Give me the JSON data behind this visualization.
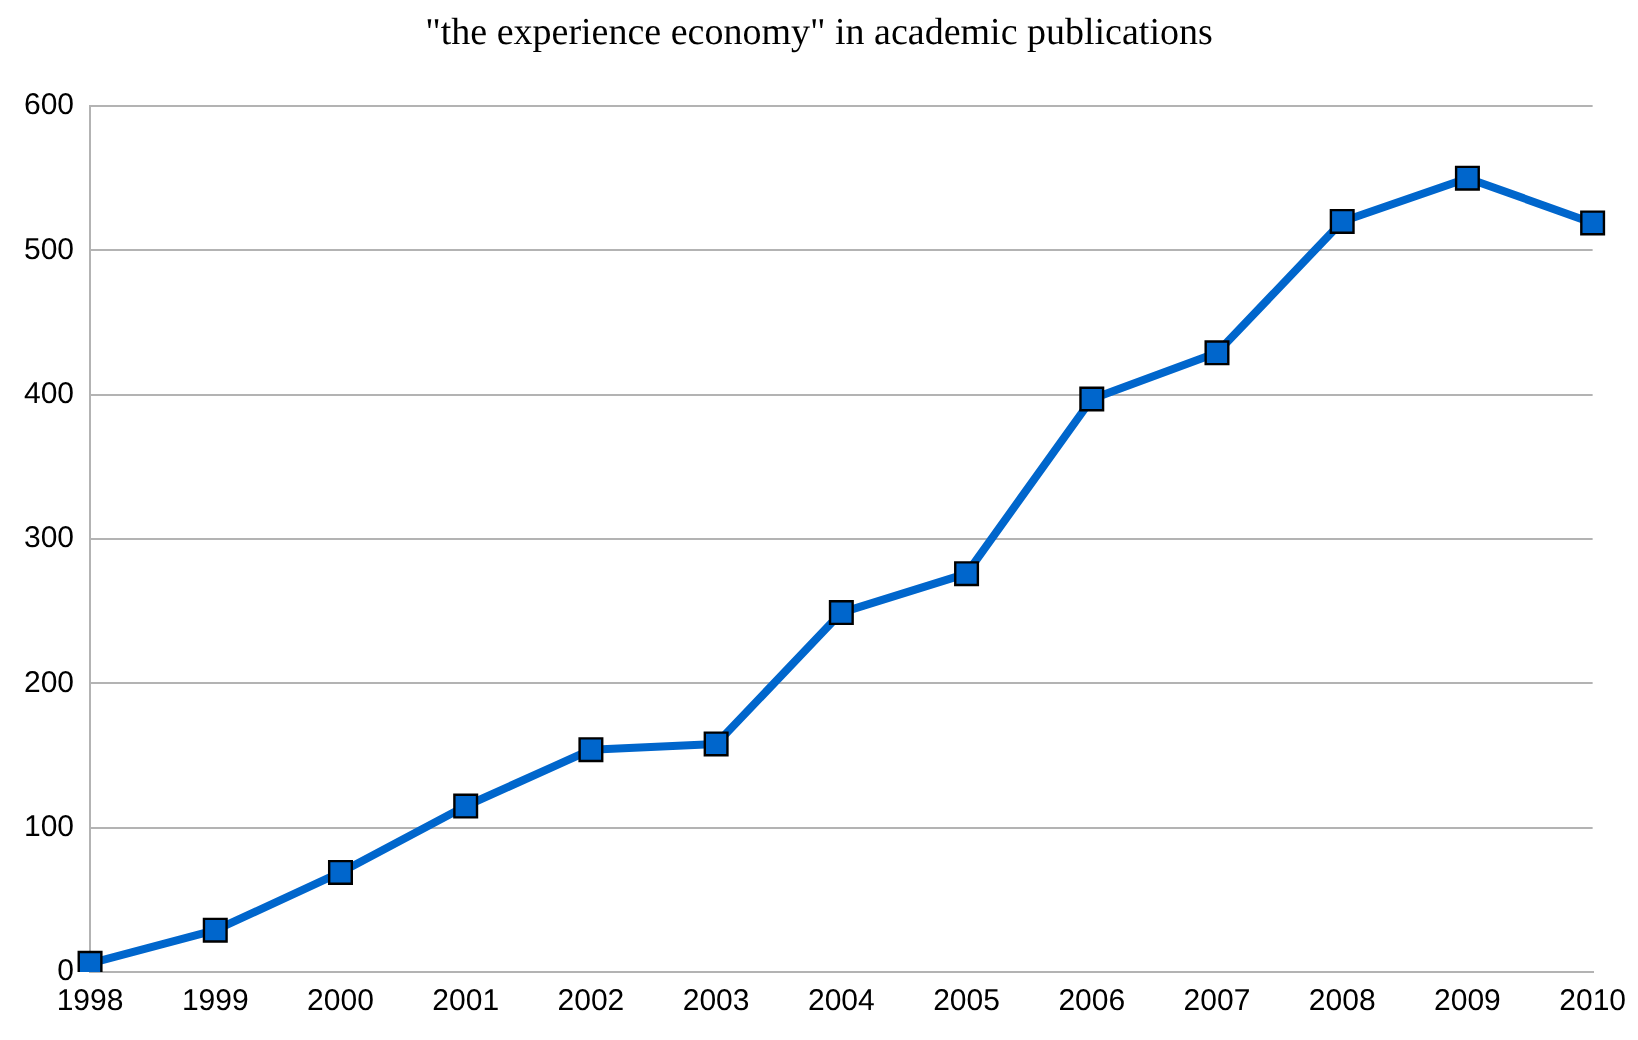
{
  "chart_data": {
    "type": "line",
    "title": "\"the experience economy\" in academic publications",
    "categories": [
      "1998",
      "1999",
      "2000",
      "2001",
      "2002",
      "2003",
      "2004",
      "2005",
      "2006",
      "2007",
      "2008",
      "2009",
      "2010"
    ],
    "series": [
      {
        "color": "#0066cc",
        "values": [
          6,
          29,
          69,
          115,
          154,
          158,
          249,
          276,
          397,
          429,
          520,
          550,
          519
        ]
      }
    ],
    "ylim": [
      0,
      600
    ],
    "yticks": [
      0,
      100,
      200,
      300,
      400,
      500,
      600
    ],
    "grid": "y",
    "legend": false,
    "marker": "square",
    "line_style": "solid"
  }
}
